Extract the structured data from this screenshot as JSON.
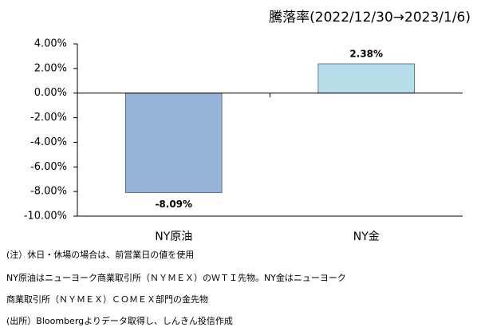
{
  "chart_data": {
    "type": "bar",
    "title": "騰落率(2022/12/30→2023/1/6)",
    "categories": [
      "NY原油",
      "NY金"
    ],
    "values": [
      -8.09,
      2.38
    ],
    "value_labels": [
      "-8.09%",
      "2.38%"
    ],
    "colors": [
      "#95b3d7",
      "#b7dee8"
    ],
    "ylim": [
      -10,
      4
    ],
    "yticks": [
      {
        "value": 4,
        "label": "4.00%"
      },
      {
        "value": 2,
        "label": "2.00%"
      },
      {
        "value": 0,
        "label": "0.00%"
      },
      {
        "value": -2,
        "label": "-2.00%"
      },
      {
        "value": -4,
        "label": "-4.00%"
      },
      {
        "value": -6,
        "label": "-6.00%"
      },
      {
        "value": -8,
        "label": "-8.00%"
      },
      {
        "value": -10,
        "label": "-10.00%"
      }
    ],
    "grid": false,
    "notes": [
      "(注）休日・休場の場合は、前営業日の値を使用",
      "NY原油はニューヨーク商業取引所（ＮＹＭＥＸ）のＷＴＩ先物。NY金はニューヨーク",
      "商業取引所（ＮＹＭＥＸ）ＣＯＭＥＸ部門の金先物",
      "(出所）Bloombergよりデータ取得し、しんきん投信作成"
    ]
  }
}
